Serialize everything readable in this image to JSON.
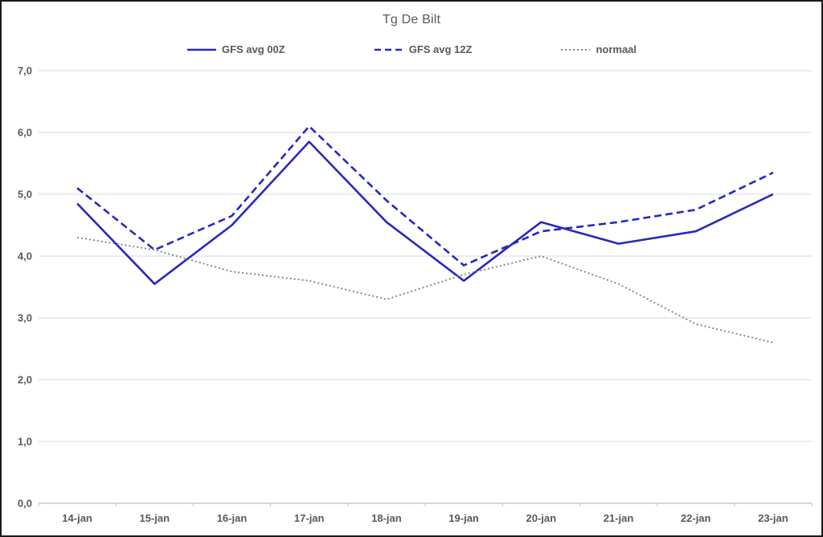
{
  "chart_data": {
    "type": "line",
    "title": "Tg De Bilt",
    "categories": [
      "14-jan",
      "15-jan",
      "16-jan",
      "17-jan",
      "18-jan",
      "19-jan",
      "20-jan",
      "21-jan",
      "22-jan",
      "23-jan"
    ],
    "series": [
      {
        "name": "GFS avg 00Z",
        "style": "solid",
        "color": "#2828be",
        "values": [
          4.85,
          3.55,
          4.5,
          5.85,
          4.55,
          3.6,
          4.55,
          4.2,
          4.4,
          5.0
        ]
      },
      {
        "name": "GFS avg 12Z",
        "style": "dashed",
        "color": "#2828be",
        "values": [
          5.1,
          4.1,
          4.65,
          6.1,
          4.9,
          3.85,
          4.4,
          4.55,
          4.75,
          5.35
        ]
      },
      {
        "name": "normaal",
        "style": "dotted",
        "color": "#7f7f7f",
        "values": [
          4.3,
          4.1,
          3.75,
          3.6,
          3.3,
          3.7,
          4.0,
          3.55,
          2.9,
          2.6
        ]
      }
    ],
    "ylim": [
      0,
      7
    ],
    "y_tick_step": 1,
    "y_tick_labels": [
      "0,0",
      "1,0",
      "2,0",
      "3,0",
      "4,0",
      "5,0",
      "6,0",
      "7,0"
    ],
    "grid": true,
    "legend_position": "top"
  },
  "colors": {
    "gridline": "#d9d9d9",
    "axis_line": "#bfbfbf",
    "tick_label": "#595959",
    "title": "#595959",
    "frame_border": "#1a1a1a",
    "background": "#ffffff"
  }
}
